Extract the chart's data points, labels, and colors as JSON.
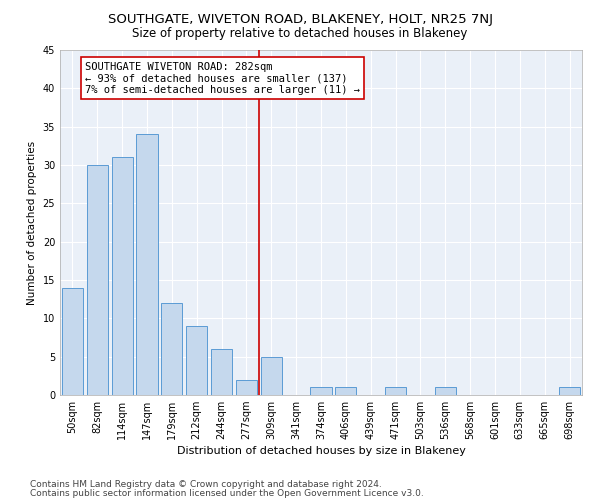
{
  "title": "SOUTHGATE, WIVETON ROAD, BLAKENEY, HOLT, NR25 7NJ",
  "subtitle": "Size of property relative to detached houses in Blakeney",
  "xlabel": "Distribution of detached houses by size in Blakeney",
  "ylabel": "Number of detached properties",
  "categories": [
    "50sqm",
    "82sqm",
    "114sqm",
    "147sqm",
    "179sqm",
    "212sqm",
    "244sqm",
    "277sqm",
    "309sqm",
    "341sqm",
    "374sqm",
    "406sqm",
    "439sqm",
    "471sqm",
    "503sqm",
    "536sqm",
    "568sqm",
    "601sqm",
    "633sqm",
    "665sqm",
    "698sqm"
  ],
  "values": [
    14,
    30,
    31,
    34,
    12,
    9,
    6,
    2,
    5,
    0,
    1,
    1,
    0,
    1,
    0,
    1,
    0,
    0,
    0,
    0,
    1
  ],
  "bar_color": "#c5d8ed",
  "bar_edge_color": "#5b9bd5",
  "vline_index": 7.5,
  "vline_color": "#cc0000",
  "annotation_text": "SOUTHGATE WIVETON ROAD: 282sqm\n← 93% of detached houses are smaller (137)\n7% of semi-detached houses are larger (11) →",
  "annotation_box_facecolor": "#ffffff",
  "annotation_box_edgecolor": "#cc0000",
  "ylim": [
    0,
    45
  ],
  "yticks": [
    0,
    5,
    10,
    15,
    20,
    25,
    30,
    35,
    40,
    45
  ],
  "footer1": "Contains HM Land Registry data © Crown copyright and database right 2024.",
  "footer2": "Contains public sector information licensed under the Open Government Licence v3.0.",
  "fig_bg_color": "#ffffff",
  "plot_bg_color": "#eaf0f8",
  "title_fontsize": 9.5,
  "subtitle_fontsize": 8.5,
  "xlabel_fontsize": 8,
  "ylabel_fontsize": 7.5,
  "tick_fontsize": 7,
  "annotation_fontsize": 7.5,
  "footer_fontsize": 6.5,
  "grid_color": "#ffffff",
  "spine_color": "#aaaaaa"
}
